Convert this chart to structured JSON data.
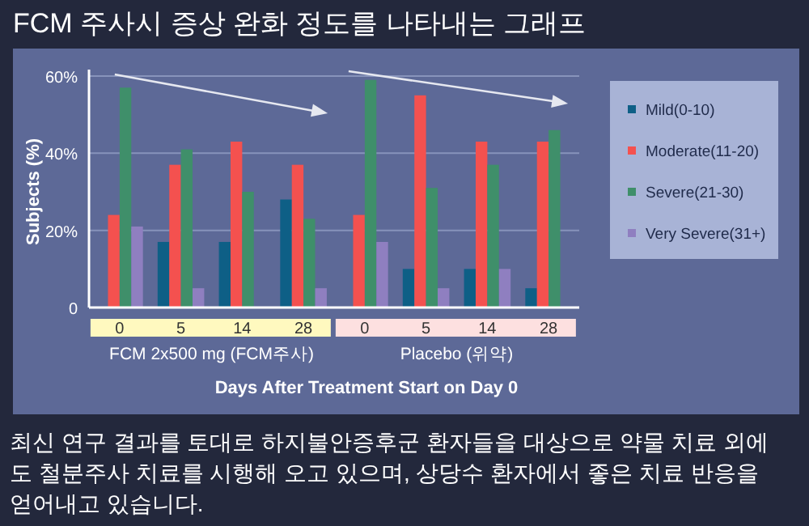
{
  "chart_data": {
    "type": "bar",
    "title": "FCM 주사시 증상 완화 정도를 나타내는 그래프",
    "xlabel": "Days After Treatment Start on Day 0",
    "ylabel": "Subjects (%)",
    "categories": [
      "0",
      "5",
      "14",
      "28",
      "0",
      "5",
      "14",
      "28"
    ],
    "series": [
      {
        "name": "Mild(0-10)",
        "color": "#0e5f86",
        "values": [
          0,
          17,
          17,
          28,
          0,
          10,
          10,
          5
        ]
      },
      {
        "name": "Moderate(11-20)",
        "color": "#f4514f",
        "values": [
          24,
          37,
          43,
          37,
          24,
          55,
          43,
          43
        ]
      },
      {
        "name": "Severe(21-30)",
        "color": "#3f8f6a",
        "values": [
          57,
          41,
          30,
          23,
          59,
          31,
          37,
          46
        ]
      },
      {
        "name": "Very Severe(31+)",
        "color": "#8f7fc0",
        "values": [
          21,
          5,
          0,
          5,
          17,
          5,
          10,
          0
        ]
      }
    ],
    "ylim": [
      0,
      60
    ],
    "yticks": [
      0,
      {
        "value": 20,
        "label": "20%"
      },
      {
        "value": 40,
        "label": "40%"
      },
      {
        "value": 60,
        "label": "60%"
      }
    ],
    "grid": "y",
    "legend": "right",
    "annotations": [
      "FCM 2x500 mg (FCM주사)",
      "Placebo (위약)",
      "최신 연구 결과를 토대로 하지불안증후군 환자들을 대상으로 약물 치료 외에도 철분주사 치료를 시행해 오고 있으며, 상당수 환자에서 좋은 치료 반응을 얻어내고 있습니다."
    ]
  }
}
